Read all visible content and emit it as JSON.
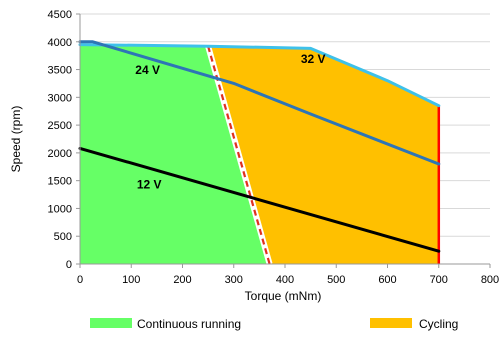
{
  "chart_data": {
    "type": "area",
    "xlabel": "Torque (mNm)",
    "ylabel": "Speed (rpm)",
    "xlim": [
      0,
      800
    ],
    "ylim": [
      0,
      4500
    ],
    "xticks": [
      0,
      100,
      200,
      300,
      400,
      500,
      600,
      700,
      800
    ],
    "yticks": [
      0,
      500,
      1000,
      1500,
      2000,
      2500,
      3000,
      3500,
      4000,
      4500
    ],
    "grid": "horizontal",
    "legend": "bottom",
    "regions": [
      {
        "name": "Continuous running",
        "color": "#66ff66",
        "points": [
          [
            0,
            3950
          ],
          [
            250,
            3920
          ],
          [
            370,
            0
          ],
          [
            0,
            0
          ]
        ]
      },
      {
        "name": "Cycling",
        "color": "#ffc000",
        "points": [
          [
            250,
            3920
          ],
          [
            450,
            3880
          ],
          [
            600,
            3300
          ],
          [
            700,
            2850
          ],
          [
            700,
            0
          ],
          [
            370,
            0
          ]
        ]
      }
    ],
    "series": [
      {
        "name": "32 V",
        "color": "#3ec1ea",
        "points": [
          [
            0,
            3950
          ],
          [
            250,
            3920
          ],
          [
            450,
            3880
          ],
          [
            600,
            3300
          ],
          [
            700,
            2850
          ]
        ]
      },
      {
        "name": "24 V",
        "color": "#2e75b6",
        "points": [
          [
            0,
            4000
          ],
          [
            25,
            4000
          ],
          [
            300,
            3250
          ],
          [
            450,
            2700
          ],
          [
            700,
            1800
          ]
        ]
      },
      {
        "name": "12 V",
        "color": "#000000",
        "points": [
          [
            0,
            2080
          ],
          [
            700,
            230
          ]
        ]
      }
    ],
    "lines": [
      {
        "id": "cont-limit-white",
        "color": "#ffffff",
        "points": [
          [
            250,
            3920
          ],
          [
            370,
            0
          ]
        ]
      },
      {
        "id": "cont-limit-dashed",
        "color": "#e03020",
        "points": [
          [
            250,
            3920
          ],
          [
            370,
            0
          ]
        ]
      },
      {
        "id": "max-torque",
        "color": "#ff0000",
        "points": [
          [
            700,
            2850
          ],
          [
            700,
            0
          ]
        ]
      }
    ],
    "annotations": [
      {
        "text": "32 V",
        "x": 455,
        "y": 3620
      },
      {
        "text": "24 V",
        "x": 132,
        "y": 3420
      },
      {
        "text": "12 V",
        "x": 135,
        "y": 1360
      }
    ],
    "legend_entries": [
      {
        "label": "Continuous running",
        "color": "#66ff66"
      },
      {
        "label": "Cycling",
        "color": "#ffc000"
      }
    ],
    "colors": {
      "grid": "#d9d9d9",
      "axis": "#999999"
    }
  }
}
